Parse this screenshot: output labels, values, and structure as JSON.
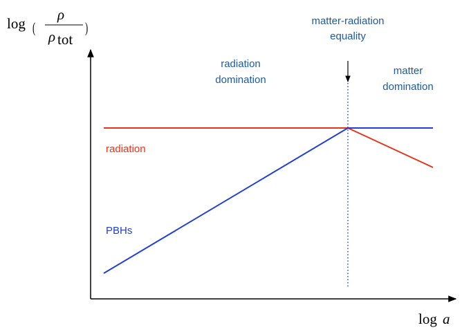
{
  "y_label": {
    "func": "log",
    "numerator": "ρ",
    "denominator": "ρ",
    "subscript": "tot"
  },
  "x_label": {
    "func": "log",
    "var": "a"
  },
  "annotations": {
    "equality": [
      "matter-radiation",
      "equality"
    ],
    "radiation_era": [
      "radiation",
      "domination"
    ],
    "matter_era": [
      "matter",
      "domination"
    ]
  },
  "curves": {
    "radiation": "radiation",
    "pbh": "PBHs"
  }
}
